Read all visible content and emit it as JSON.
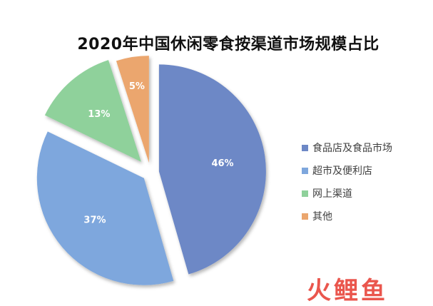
{
  "chart_data": {
    "type": "pie",
    "title": "2020年中国休闲零食按渠道市场规模占比",
    "categories": [
      "食品店及食品市场",
      "超市及便利店",
      "网上渠道",
      "其他"
    ],
    "values": [
      46,
      37,
      13,
      5
    ],
    "data_labels": [
      "46%",
      "37%",
      "13%",
      "5%"
    ],
    "colors": [
      "#6d88c6",
      "#7ea7dd",
      "#8fd19b",
      "#eba66e"
    ],
    "legend_position": "right",
    "exploded": true
  },
  "watermark": {
    "text": "火鲤鱼",
    "color": "#e8443a"
  }
}
